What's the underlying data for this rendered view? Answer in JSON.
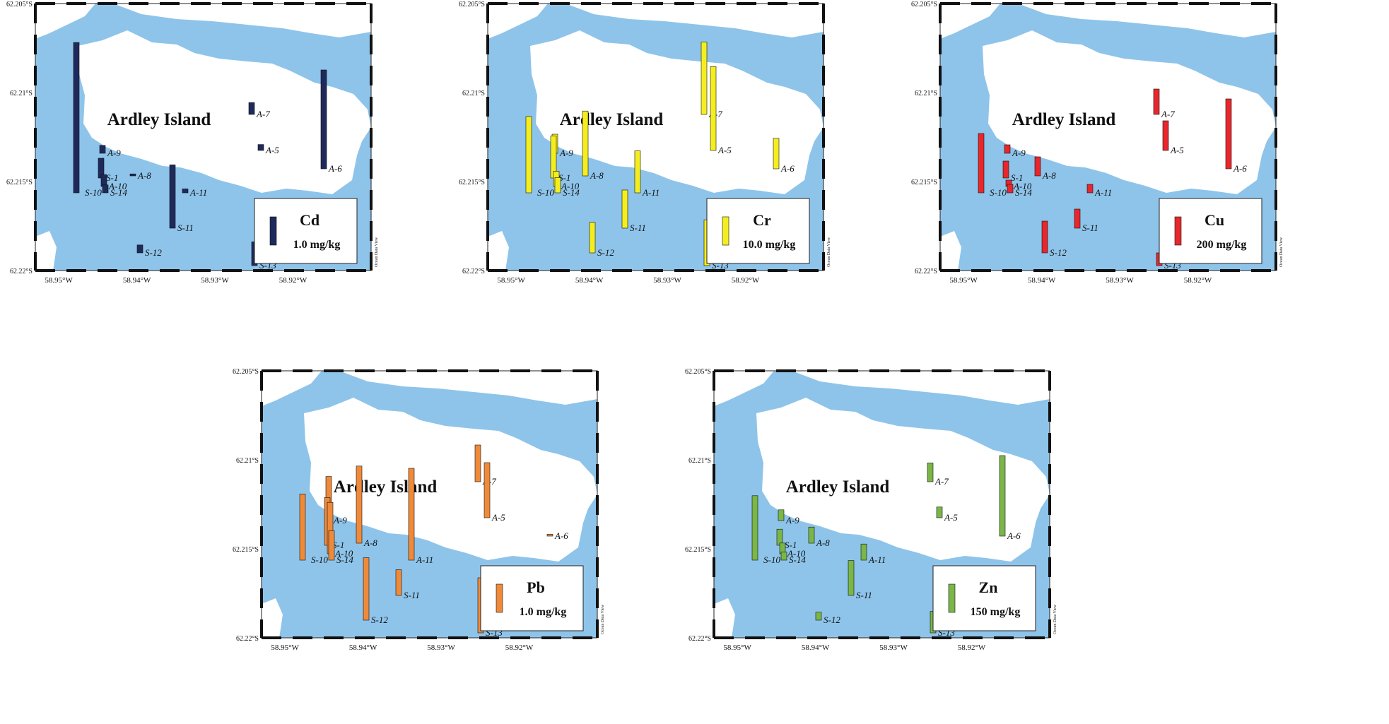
{
  "island_label": "Ardley Island",
  "watermark": "Ocean Data View",
  "colors": {
    "water": "#8ec4ea",
    "land": "#ffffff",
    "Cd": "#1f2a5c",
    "Cr": "#f5ee1f",
    "Cu": "#e8262b",
    "Pb": "#ef8a3a",
    "Zn": "#7ab648"
  },
  "axes": {
    "x_ticks": [
      "58.95°W",
      "58.94°W",
      "58.93°W",
      "58.92°W"
    ],
    "y_ticks": [
      "62.205°S",
      "62.21°S",
      "62.215°S",
      "62.22°S"
    ],
    "x_values": [
      -58.95,
      -58.94,
      -58.93,
      -58.92
    ],
    "y_values": [
      62.205,
      62.21,
      62.215,
      62.22
    ],
    "lon_range": [
      -58.953,
      -58.91
    ],
    "lat_range": [
      62.205,
      62.22
    ]
  },
  "chart_data": [
    {
      "type": "bar",
      "element": "Cd",
      "legend_label": "Cd",
      "legend_value": "1.0 mg/kg",
      "sites": [
        {
          "name": "A-9",
          "value": 0.2
        },
        {
          "name": "S-1",
          "value": 0.5
        },
        {
          "name": "A-10",
          "value": 0.3
        },
        {
          "name": "S-14",
          "value": 0.2
        },
        {
          "name": "S-10",
          "value": 3.8
        },
        {
          "name": "A-8",
          "value": 0.05
        },
        {
          "name": "A-11",
          "value": 0.1
        },
        {
          "name": "S-11",
          "value": 1.6
        },
        {
          "name": "A-7",
          "value": 0.3
        },
        {
          "name": "A-5",
          "value": 0.15
        },
        {
          "name": "A-6",
          "value": 2.5
        },
        {
          "name": "S-12",
          "value": 0.2
        },
        {
          "name": "S-13",
          "value": 0.6
        }
      ]
    },
    {
      "type": "bar",
      "element": "Cr",
      "legend_label": "Cr",
      "legend_value": "10.0 mg/kg",
      "sites": [
        {
          "name": "A-9",
          "value": 5
        },
        {
          "name": "S-1",
          "value": 11
        },
        {
          "name": "A-10",
          "value": 4
        },
        {
          "name": "S-14",
          "value": 4
        },
        {
          "name": "S-10",
          "value": 20
        },
        {
          "name": "A-8",
          "value": 17
        },
        {
          "name": "A-11",
          "value": 11
        },
        {
          "name": "S-11",
          "value": 10
        },
        {
          "name": "A-7",
          "value": 19
        },
        {
          "name": "A-5",
          "value": 22
        },
        {
          "name": "A-6",
          "value": 8
        },
        {
          "name": "S-12",
          "value": 8
        },
        {
          "name": "S-13",
          "value": 12
        }
      ]
    },
    {
      "type": "bar",
      "element": "Cu",
      "legend_label": "Cu",
      "legend_value": "200 mg/kg",
      "sites": [
        {
          "name": "A-9",
          "value": 40
        },
        {
          "name": "S-1",
          "value": 80
        },
        {
          "name": "A-10",
          "value": 30
        },
        {
          "name": "S-14",
          "value": 40
        },
        {
          "name": "S-10",
          "value": 280
        },
        {
          "name": "A-8",
          "value": 90
        },
        {
          "name": "A-11",
          "value": 40
        },
        {
          "name": "S-11",
          "value": 90
        },
        {
          "name": "A-7",
          "value": 120
        },
        {
          "name": "A-5",
          "value": 140
        },
        {
          "name": "A-6",
          "value": 330
        },
        {
          "name": "S-12",
          "value": 150
        },
        {
          "name": "S-13",
          "value": 60
        }
      ]
    },
    {
      "type": "bar",
      "element": "Pb",
      "legend_label": "Pb",
      "legend_value": "1.0 mg/kg",
      "sites": [
        {
          "name": "A-9",
          "value": 1.2
        },
        {
          "name": "S-1",
          "value": 1.3
        },
        {
          "name": "A-10",
          "value": 1.4
        },
        {
          "name": "S-14",
          "value": 0.8
        },
        {
          "name": "S-10",
          "value": 1.8
        },
        {
          "name": "A-8",
          "value": 2.1
        },
        {
          "name": "A-11",
          "value": 2.5
        },
        {
          "name": "S-11",
          "value": 0.7
        },
        {
          "name": "A-7",
          "value": 1.0
        },
        {
          "name": "A-5",
          "value": 1.5
        },
        {
          "name": "A-6",
          "value": 0.05
        },
        {
          "name": "S-12",
          "value": 1.7
        },
        {
          "name": "S-13",
          "value": 1.5
        }
      ]
    },
    {
      "type": "bar",
      "element": "Zn",
      "legend_label": "Zn",
      "legend_value": "150 mg/kg",
      "sites": [
        {
          "name": "A-9",
          "value": 40
        },
        {
          "name": "S-1",
          "value": 60
        },
        {
          "name": "A-10",
          "value": 40
        },
        {
          "name": "S-14",
          "value": 30
        },
        {
          "name": "S-10",
          "value": 240
        },
        {
          "name": "A-8",
          "value": 60
        },
        {
          "name": "A-11",
          "value": 60
        },
        {
          "name": "S-11",
          "value": 130
        },
        {
          "name": "A-7",
          "value": 70
        },
        {
          "name": "A-5",
          "value": 40
        },
        {
          "name": "A-6",
          "value": 300
        },
        {
          "name": "S-12",
          "value": 30
        },
        {
          "name": "S-13",
          "value": 80
        }
      ]
    }
  ]
}
